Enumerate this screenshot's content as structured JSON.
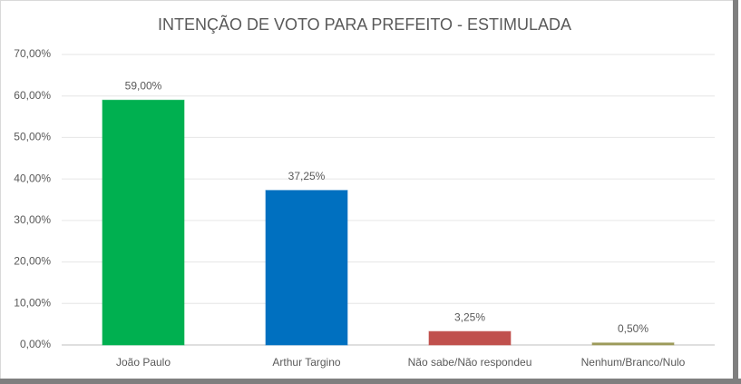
{
  "chart_data": {
    "type": "bar",
    "title": "INTENÇÃO DE VOTO PARA PREFEITO - ESTIMULADA",
    "categories": [
      "João Paulo",
      "Arthur Targino",
      "Não sabe/Não respondeu",
      "Nenhum/Branco/Nulo"
    ],
    "values": [
      59,
      37.25,
      3.25,
      0.5
    ],
    "value_labels": [
      "59,00%",
      "37,25%",
      "3,25%",
      "0,50%"
    ],
    "colors": [
      "#00b050",
      "#0070c0",
      "#c0504d",
      "#9c9a5a"
    ],
    "ylim": [
      0,
      70
    ],
    "yticks": [
      {
        "value": 0,
        "label": "0,00%"
      },
      {
        "value": 10,
        "label": "10,00%"
      },
      {
        "value": 20,
        "label": "20,00%"
      },
      {
        "value": 30,
        "label": "30,00%"
      },
      {
        "value": 40,
        "label": "40,00%"
      },
      {
        "value": 50,
        "label": "50,00%"
      },
      {
        "value": 60,
        "label": "60,00%"
      },
      {
        "value": 70,
        "label": "70,00%"
      }
    ],
    "grid": true
  }
}
